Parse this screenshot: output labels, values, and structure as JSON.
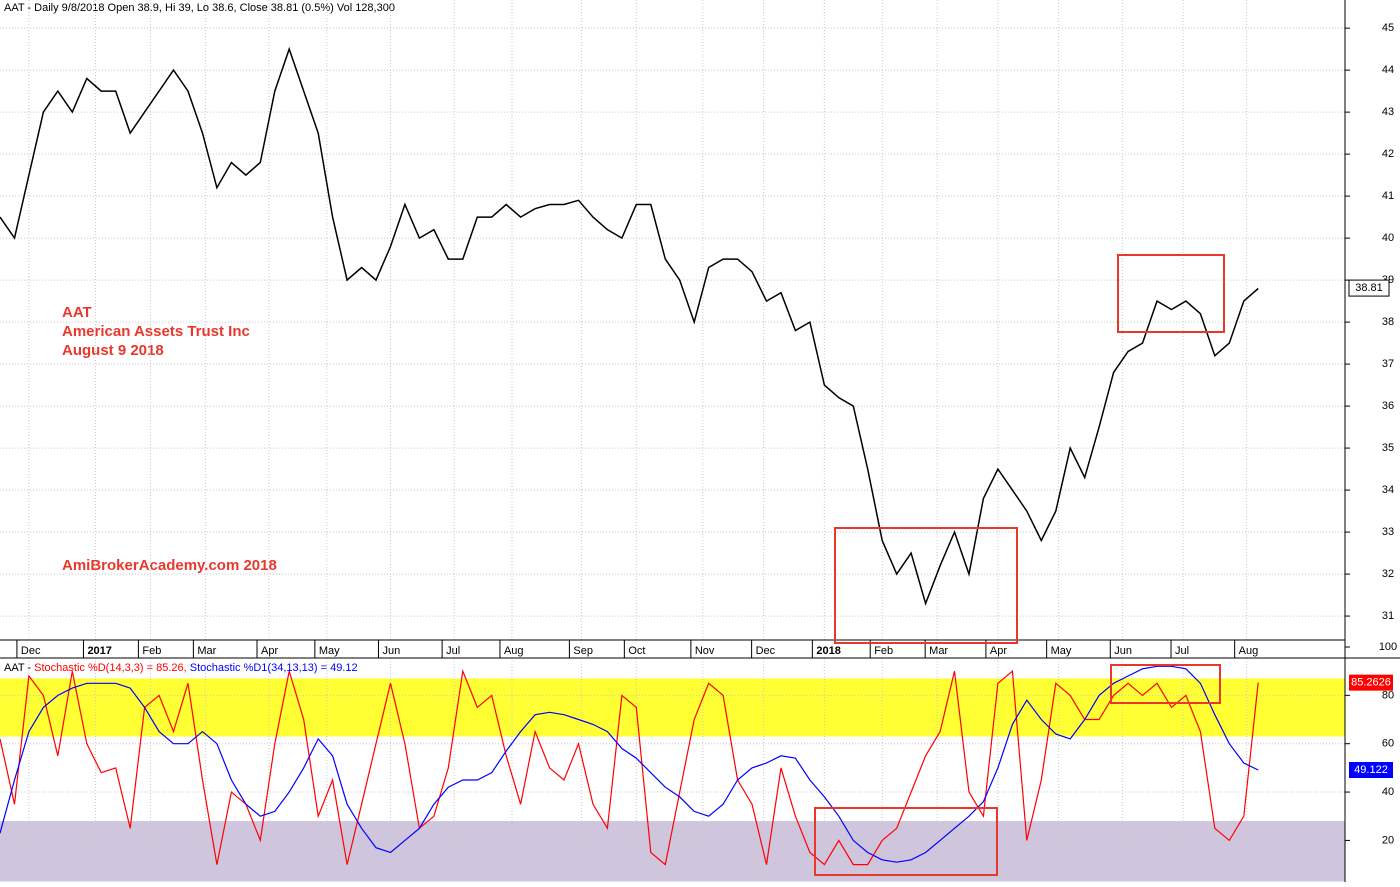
{
  "chart_data": [
    {
      "type": "line",
      "title": "AAT - Daily 9/8/2018 Open 38.9, Hi 39, Lo 38.6, Close 38.81 (0.5%) Vol 128,300",
      "annotations": [
        "AAT",
        "American Assets Trust Inc",
        "August 9 2018",
        "AmiBrokerAcademy.com  2018"
      ],
      "x": [
        0,
        5,
        10,
        15,
        20,
        25,
        30,
        35,
        40,
        45,
        50,
        55,
        60,
        65,
        70,
        75,
        80,
        85,
        90,
        95,
        100,
        105,
        110,
        115,
        120,
        125,
        130,
        135,
        140,
        145,
        150,
        155,
        160,
        165,
        170,
        175,
        180,
        185,
        190,
        195,
        200,
        205,
        210,
        215,
        220,
        225,
        230,
        235,
        240,
        245,
        250,
        255,
        260,
        265,
        270,
        275,
        280,
        285,
        290,
        295,
        300,
        305,
        310,
        315,
        320,
        325,
        330,
        335,
        340,
        345,
        350,
        355,
        360,
        365,
        370,
        375,
        380,
        385,
        390,
        395,
        400,
        405,
        410,
        415,
        420,
        425,
        430,
        435
      ],
      "series": [
        {
          "name": "Close",
          "color": "#000000",
          "values": [
            40.5,
            40,
            41.5,
            43,
            43.5,
            43,
            43.8,
            43.5,
            43.5,
            42.5,
            43,
            43.5,
            44,
            43.5,
            42.5,
            41.2,
            41.8,
            41.5,
            41.8,
            43.5,
            44.5,
            43.5,
            42.5,
            40.5,
            39,
            39.3,
            39,
            39.8,
            40.8,
            40,
            40.2,
            39.5,
            39.5,
            40.5,
            40.5,
            40.8,
            40.5,
            40.7,
            40.8,
            40.8,
            40.9,
            40.5,
            40.2,
            40,
            40.8,
            40.8,
            39.5,
            39,
            38,
            39.3,
            39.5,
            39.5,
            39.2,
            38.5,
            38.7,
            37.8,
            38,
            36.5,
            36.2,
            36,
            34.5,
            32.8,
            32,
            32.5,
            31.3,
            32.2,
            33,
            32,
            33.8,
            34.5,
            34,
            33.5,
            32.8,
            33.5,
            35,
            34.3,
            35.5,
            36.8,
            37.3,
            37.5,
            38.5,
            38.3,
            38.5,
            38.2,
            37.2,
            37.5,
            38.5,
            38.8
          ]
        }
      ],
      "last_value": 38.81,
      "xlim": [
        0,
        465
      ],
      "xticks": [
        {
          "value": 10,
          "label": "Dec"
        },
        {
          "value": 33,
          "label": "2017"
        },
        {
          "value": 52,
          "label": "Feb"
        },
        {
          "value": 71,
          "label": "Mar"
        },
        {
          "value": 93,
          "label": "Apr"
        },
        {
          "value": 113,
          "label": "May"
        },
        {
          "value": 135,
          "label": "Jun"
        },
        {
          "value": 157,
          "label": "Jul"
        },
        {
          "value": 177,
          "label": "Aug"
        },
        {
          "value": 201,
          "label": "Sep"
        },
        {
          "value": 220,
          "label": "Oct"
        },
        {
          "value": 243,
          "label": "Nov"
        },
        {
          "value": 264,
          "label": "Dec"
        },
        {
          "value": 285,
          "label": "2018"
        },
        {
          "value": 305,
          "label": "Feb"
        },
        {
          "value": 324,
          "label": "Mar"
        },
        {
          "value": 345,
          "label": "Apr"
        },
        {
          "value": 366,
          "label": "May"
        },
        {
          "value": 388,
          "label": "Jun"
        },
        {
          "value": 409,
          "label": "Jul"
        },
        {
          "value": 431,
          "label": "Aug"
        }
      ],
      "ylim": [
        30.43,
        45.67
      ],
      "yticks": [
        31,
        32,
        33,
        34,
        35,
        36,
        37,
        38,
        39,
        40,
        41,
        42,
        43,
        44,
        45
      ],
      "grid": true
    },
    {
      "type": "line",
      "title_parts": [
        "AAT - ",
        "Stochastic %D(14,3,3) = 85.26, ",
        "Stochastic %D1(34,13,13) = 49.12"
      ],
      "x": [
        0,
        5,
        10,
        15,
        20,
        25,
        30,
        35,
        40,
        45,
        50,
        55,
        60,
        65,
        70,
        75,
        80,
        85,
        90,
        95,
        100,
        105,
        110,
        115,
        120,
        125,
        130,
        135,
        140,
        145,
        150,
        155,
        160,
        165,
        170,
        175,
        180,
        185,
        190,
        195,
        200,
        205,
        210,
        215,
        220,
        225,
        230,
        235,
        240,
        245,
        250,
        255,
        260,
        265,
        270,
        275,
        280,
        285,
        290,
        295,
        300,
        305,
        310,
        315,
        320,
        325,
        330,
        335,
        340,
        345,
        350,
        355,
        360,
        365,
        370,
        375,
        380,
        385,
        390,
        395,
        400,
        405,
        410,
        415,
        420,
        425,
        430,
        435
      ],
      "series": [
        {
          "name": "Stochastic %D(14,3,3)",
          "color": "#ff0000",
          "last_label": "85.2626",
          "values": [
            62,
            35,
            88,
            80,
            55,
            90,
            60,
            48,
            50,
            25,
            75,
            80,
            65,
            85,
            45,
            10,
            40,
            35,
            20,
            60,
            90,
            70,
            30,
            45,
            10,
            35,
            60,
            85,
            60,
            25,
            30,
            50,
            90,
            75,
            80,
            55,
            35,
            65,
            50,
            45,
            60,
            35,
            25,
            80,
            75,
            15,
            10,
            40,
            70,
            85,
            80,
            45,
            35,
            10,
            50,
            30,
            15,
            10,
            20,
            10,
            10,
            20,
            25,
            40,
            55,
            65,
            90,
            40,
            30,
            85,
            90,
            20,
            45,
            85,
            80,
            70,
            70,
            80,
            85,
            80,
            85,
            75,
            80,
            65,
            25,
            20,
            30,
            85.26
          ]
        },
        {
          "name": "Stochastic %D1(34,13,13)",
          "color": "#0000ff",
          "last_label": "49.122",
          "values": [
            23,
            45,
            65,
            75,
            80,
            83,
            85,
            85,
            85,
            83,
            75,
            65,
            60,
            60,
            65,
            60,
            45,
            35,
            30,
            32,
            40,
            50,
            62,
            55,
            35,
            25,
            17,
            15,
            20,
            25,
            35,
            42,
            45,
            45,
            48,
            57,
            65,
            72,
            73,
            72,
            70,
            68,
            65,
            58,
            54,
            48,
            42,
            38,
            32,
            30,
            35,
            45,
            50,
            52,
            55,
            54,
            45,
            38,
            30,
            20,
            15,
            12,
            11,
            12,
            15,
            20,
            25,
            30,
            36,
            50,
            68,
            78,
            70,
            64,
            62,
            70,
            80,
            85,
            88,
            91,
            92,
            92,
            91,
            85,
            72,
            60,
            52,
            49.12
          ]
        }
      ],
      "bands": [
        {
          "range": [
            63,
            87
          ],
          "color": "#ffff33"
        },
        {
          "range": [
            3,
            28
          ],
          "color": "#cfc6de"
        }
      ],
      "xlim": [
        0,
        465
      ],
      "ylim": [
        2.8,
        100
      ],
      "yticks": [
        20,
        40,
        60,
        80,
        100
      ]
    }
  ]
}
